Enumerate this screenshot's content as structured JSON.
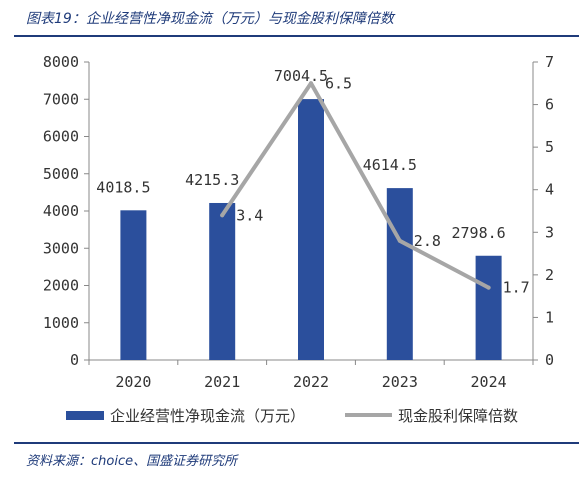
{
  "figure": {
    "title": "图表19：企业经营性净现金流（万元）与现金股利保障倍数",
    "source": "资料来源：choice、国盛证券研究所"
  },
  "chart_data": {
    "type": "bar+line",
    "categories": [
      "2020",
      "2021",
      "2022",
      "2023",
      "2024"
    ],
    "series": [
      {
        "name": "企业经营性净现金流（万元）",
        "type": "bar",
        "axis": "left",
        "color": "#2b4f9c",
        "values": [
          4018.5,
          4215.3,
          7004.5,
          4614.5,
          2798.6
        ],
        "labels": [
          "4018.5",
          "4215.3",
          "7004.5",
          "4614.5",
          "2798.6"
        ]
      },
      {
        "name": "现金股利保障倍数",
        "type": "line",
        "axis": "right",
        "color": "#a6a6a6",
        "values": [
          null,
          3.4,
          6.5,
          2.8,
          1.7
        ],
        "labels": [
          "",
          "3.4",
          "6.5",
          "2.8",
          "1.7"
        ]
      }
    ],
    "y_left": {
      "min": 0,
      "max": 8000,
      "ticks": [
        "0",
        "1000",
        "2000",
        "3000",
        "4000",
        "5000",
        "6000",
        "7000",
        "8000"
      ]
    },
    "y_right": {
      "min": 0,
      "max": 7,
      "ticks": [
        "0",
        "1",
        "2",
        "3",
        "4",
        "5",
        "6",
        "7"
      ]
    },
    "grid": false,
    "legend_position": "bottom"
  }
}
